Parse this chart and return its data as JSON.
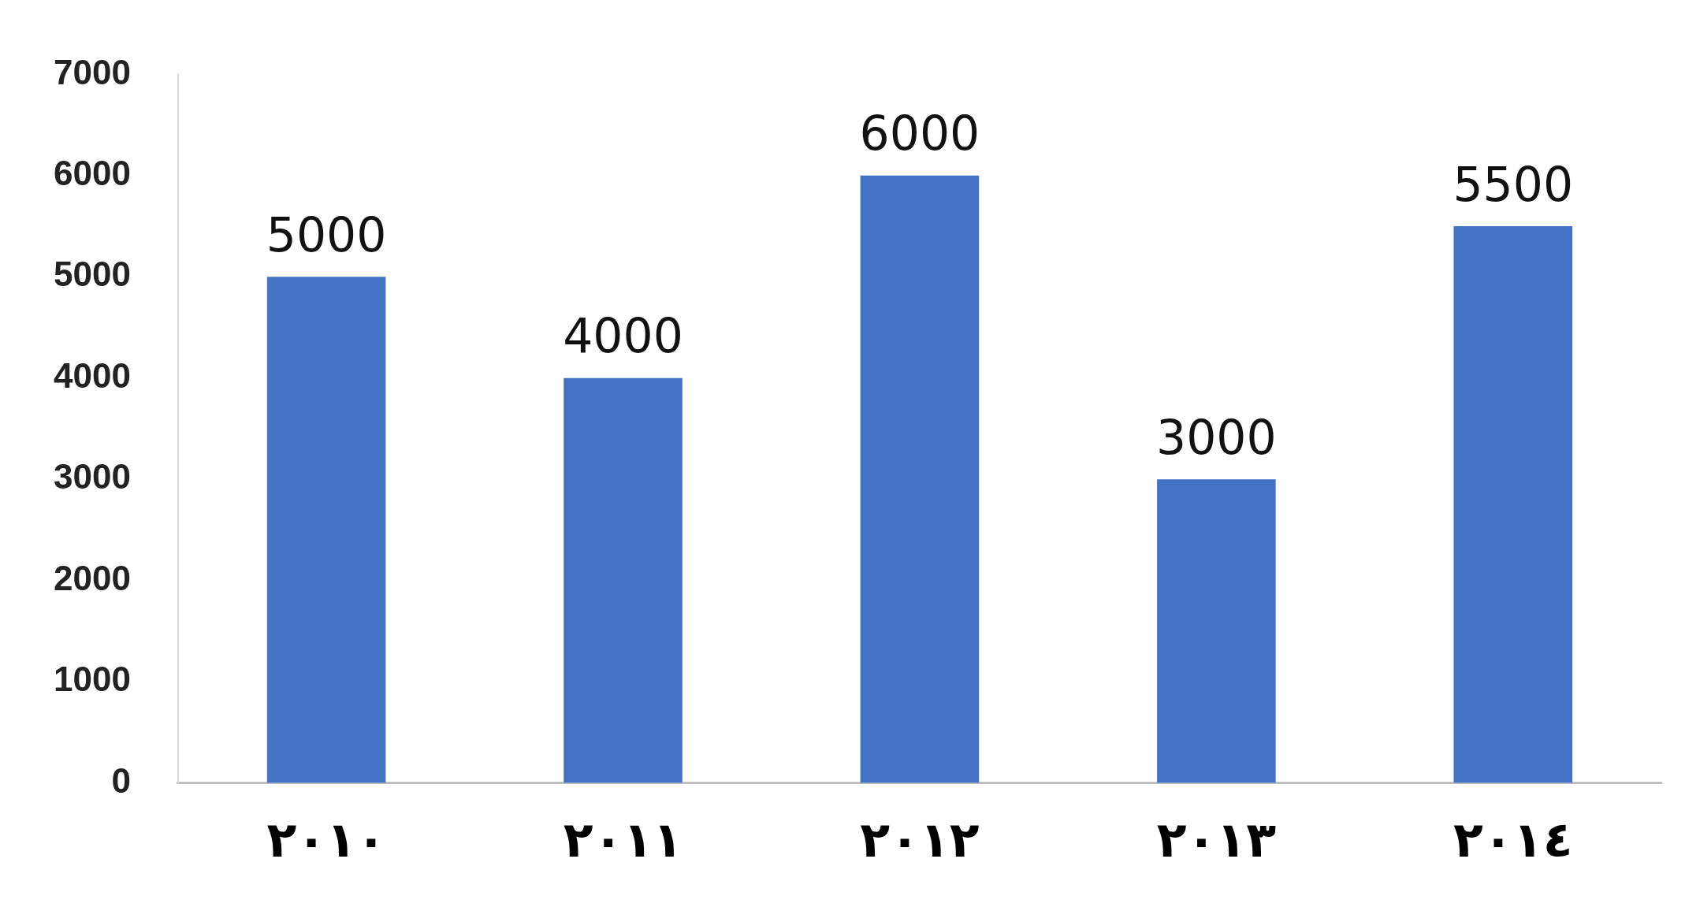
{
  "chart_data": {
    "type": "bar",
    "categories": [
      "٢٠١٠",
      "٢٠١١",
      "٢٠١٢",
      "٢٠١٣",
      "٢٠١٤"
    ],
    "values": [
      5000,
      4000,
      6000,
      3000,
      5500
    ],
    "color": "#4472c4",
    "ylim": [
      0,
      7000
    ],
    "yticks": [
      0,
      1000,
      2000,
      3000,
      4000,
      5000,
      6000,
      7000
    ],
    "grid": false,
    "legend": false,
    "data_labels": true
  }
}
